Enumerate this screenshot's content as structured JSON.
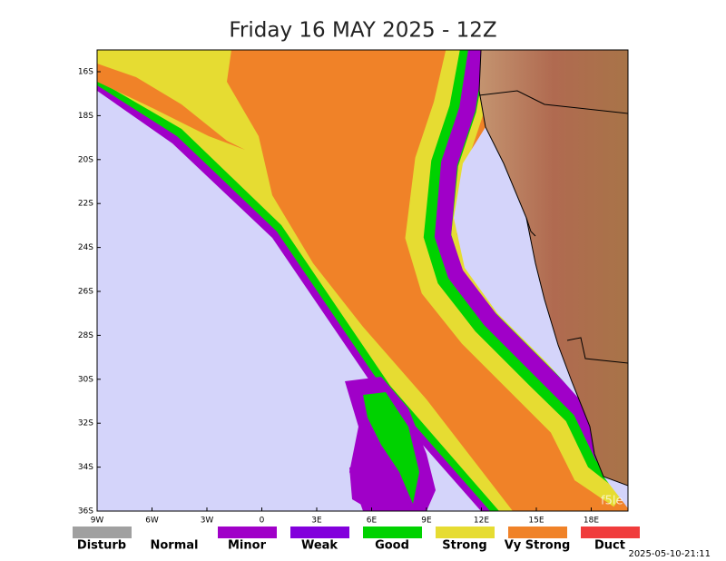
{
  "title": "Friday 16 MAY 2025 - 12Z",
  "lat_labels": [
    "16S",
    "18S",
    "20S",
    "22S",
    "24S",
    "26S",
    "28S",
    "30S",
    "32S",
    "34S",
    "36S"
  ],
  "lon_labels": [
    "9W",
    "6W",
    "3W",
    "0",
    "3E",
    "6E",
    "9E",
    "12E",
    "15E",
    "18E"
  ],
  "legend": [
    {
      "label": "Disturb",
      "color": "#a0a0a0"
    },
    {
      "label": "Normal",
      "color": "#ffffff"
    },
    {
      "label": "Minor",
      "color": "#a000c8"
    },
    {
      "label": "Weak",
      "color": "#8200dc"
    },
    {
      "label": "Good",
      "color": "#00d200"
    },
    {
      "label": "Strong",
      "color": "#e6dc32"
    },
    {
      "label": "Vy Strong",
      "color": "#f08228"
    },
    {
      "label": "Duct",
      "color": "#f03c3c"
    }
  ],
  "watermark": "f5le",
  "timestamp": "2025-05-10-21:11"
}
